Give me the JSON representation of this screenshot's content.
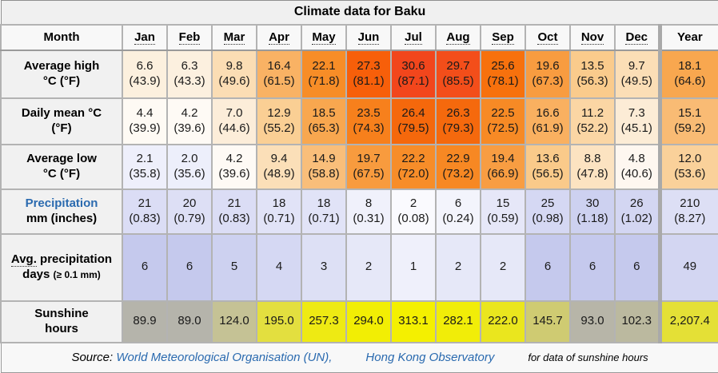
{
  "title": "Climate data for Baku",
  "header": {
    "month": "Month",
    "year": "Year",
    "months": [
      "Jan",
      "Feb",
      "Mar",
      "Apr",
      "May",
      "Jun",
      "Jul",
      "Aug",
      "Sep",
      "Oct",
      "Nov",
      "Dec"
    ]
  },
  "colors": {
    "link": "#2a6aaf",
    "title_bg": "#f0f0f0",
    "header_bg": "#f8f8f8",
    "label_bg": "#f1f1f1",
    "grid": "#b3b3b3"
  },
  "rows": [
    {
      "id": "average-high",
      "label": {
        "line1": "Average high",
        "line2": "°C (°F)"
      },
      "values": [
        "6.6",
        "6.3",
        "9.8",
        "16.4",
        "22.1",
        "27.3",
        "30.6",
        "29.7",
        "25.6",
        "19.6",
        "13.5",
        "9.7"
      ],
      "subs": [
        "(43.9)",
        "(43.3)",
        "(49.6)",
        "(61.5)",
        "(71.8)",
        "(81.1)",
        "(87.1)",
        "(85.5)",
        "(78.1)",
        "(67.3)",
        "(56.3)",
        "(49.5)"
      ],
      "year": {
        "value": "18.1",
        "sub": "(64.6)"
      },
      "colors": [
        "#FCF0DE",
        "#FCF0DF",
        "#FBDDB4",
        "#F9B264",
        "#F78D27",
        "#F75F0A",
        "#F2461C",
        "#F34E1A",
        "#F7710D",
        "#F89C40",
        "#FACB8C",
        "#FBDEB6"
      ],
      "year_color": "#F8A74F"
    },
    {
      "id": "daily-mean",
      "label": {
        "line1": "Daily mean °C",
        "line2": "(°F)"
      },
      "values": [
        "4.4",
        "4.2",
        "7.0",
        "12.9",
        "18.5",
        "23.5",
        "26.4",
        "26.3",
        "22.5",
        "16.6",
        "11.2",
        "7.3"
      ],
      "subs": [
        "(39.9)",
        "(39.6)",
        "(44.6)",
        "(55.2)",
        "(65.3)",
        "(74.3)",
        "(79.5)",
        "(79.3)",
        "(72.5)",
        "(61.9)",
        "(52.2)",
        "(45.1)"
      ],
      "year": {
        "value": "15.1",
        "sub": "(59.2)"
      },
      "colors": [
        "#FEFAF4",
        "#FEFAF5",
        "#FCEDD9",
        "#FACF94",
        "#F8A74F",
        "#F7801C",
        "#F5680C",
        "#F5690D",
        "#F78A25",
        "#F9B060",
        "#FBD6A4",
        "#FCECD6"
      ],
      "year_color": "#F9BB74"
    },
    {
      "id": "average-low",
      "label": {
        "line1": "Average low",
        "line2": "°C (°F)"
      },
      "values": [
        "2.1",
        "2.0",
        "4.2",
        "9.4",
        "14.9",
        "19.7",
        "22.2",
        "22.9",
        "19.4",
        "13.6",
        "8.8",
        "4.8"
      ],
      "subs": [
        "(35.8)",
        "(35.6)",
        "(39.6)",
        "(48.9)",
        "(58.8)",
        "(67.5)",
        "(72.0)",
        "(73.2)",
        "(66.9)",
        "(56.5)",
        "(47.8)",
        "(40.6)"
      ],
      "year": {
        "value": "12.0",
        "sub": "(53.6)"
      },
      "colors": [
        "#EEEFFB",
        "#EDEFFB",
        "#FEFAF5",
        "#FBDFB8",
        "#F9BE7A",
        "#F89B3E",
        "#F78D29",
        "#F78823",
        "#F89D42",
        "#FACA8A",
        "#FCE3C1",
        "#FEF7F0"
      ],
      "year_color": "#FAD19A"
    },
    {
      "id": "precipitation",
      "label": {
        "line1": "Precipitation",
        "link": true,
        "line2": "mm (inches)"
      },
      "values": [
        "21",
        "20",
        "21",
        "18",
        "18",
        "8",
        "2",
        "6",
        "15",
        "25",
        "30",
        "26"
      ],
      "subs": [
        "(0.83)",
        "(0.79)",
        "(0.83)",
        "(0.71)",
        "(0.71)",
        "(0.31)",
        "(0.08)",
        "(0.24)",
        "(0.59)",
        "(0.98)",
        "(1.18)",
        "(1.02)"
      ],
      "year": {
        "value": "210",
        "sub": "(8.27)"
      },
      "colors": [
        "#DBDDF5",
        "#DDDFF5",
        "#DBDDF5",
        "#E1E3F7",
        "#E1E3F7",
        "#F0F1FB",
        "#FAFAFE",
        "#F3F4FC",
        "#E6E7F8",
        "#D5D8F3",
        "#CDD1F0",
        "#D3D6F2"
      ],
      "year_color": "#DDDFF5"
    },
    {
      "id": "precip-days",
      "label": {
        "abbr": "Avg.",
        "rest": "precipitation days",
        "small": "(≥ 0.1 mm)"
      },
      "values": [
        "6",
        "6",
        "5",
        "4",
        "3",
        "2",
        "1",
        "2",
        "2",
        "6",
        "6",
        "6"
      ],
      "subs": null,
      "year": {
        "value": "49",
        "sub": null
      },
      "colors": [
        "#C5C9ED",
        "#C5C9ED",
        "#CDD1F0",
        "#D5D8F3",
        "#DDE0F5",
        "#E6E8F8",
        "#EFF0FB",
        "#E6E8F8",
        "#E6E8F8",
        "#C5C9ED",
        "#C5C9ED",
        "#C5C9ED"
      ],
      "year_color": "#D3D6F2"
    },
    {
      "id": "sunshine",
      "label": {
        "line1": "Sunshine",
        "line2": "hours"
      },
      "values": [
        "89.9",
        "89.0",
        "124.0",
        "195.0",
        "257.3",
        "294.0",
        "313.1",
        "282.1",
        "222.0",
        "145.7",
        "93.0",
        "102.3"
      ],
      "subs": null,
      "year": {
        "value": "2,207.4",
        "sub": null
      },
      "colors": [
        "#B5B4AB",
        "#B5B4AB",
        "#C5C295",
        "#E3DF3F",
        "#EEEA13",
        "#F2EE04",
        "#F4F000",
        "#F1ED08",
        "#EAE61E",
        "#CFCB72",
        "#B7B5A8",
        "#BBB99F"
      ],
      "year_color": "#E4E036"
    }
  ],
  "footer": {
    "prefix": "Source:",
    "link1": "World Meteorological Organisation (UN),",
    "link2": "Hong Kong Observatory",
    "note": "for data of sunshine hours"
  },
  "chart_data": {
    "type": "table",
    "title": "Climate data for Baku",
    "categories": [
      "Jan",
      "Feb",
      "Mar",
      "Apr",
      "May",
      "Jun",
      "Jul",
      "Aug",
      "Sep",
      "Oct",
      "Nov",
      "Dec"
    ],
    "series": [
      {
        "name": "Average high °C",
        "values": [
          6.6,
          6.3,
          9.8,
          16.4,
          22.1,
          27.3,
          30.6,
          29.7,
          25.6,
          19.6,
          13.5,
          9.7
        ],
        "year": 18.1
      },
      {
        "name": "Average high °F",
        "values": [
          43.9,
          43.3,
          49.6,
          61.5,
          71.8,
          81.1,
          87.1,
          85.5,
          78.1,
          67.3,
          56.3,
          49.5
        ],
        "year": 64.6
      },
      {
        "name": "Daily mean °C",
        "values": [
          4.4,
          4.2,
          7.0,
          12.9,
          18.5,
          23.5,
          26.4,
          26.3,
          22.5,
          16.6,
          11.2,
          7.3
        ],
        "year": 15.1
      },
      {
        "name": "Daily mean °F",
        "values": [
          39.9,
          39.6,
          44.6,
          55.2,
          65.3,
          74.3,
          79.5,
          79.3,
          72.5,
          61.9,
          52.2,
          45.1
        ],
        "year": 59.2
      },
      {
        "name": "Average low °C",
        "values": [
          2.1,
          2.0,
          4.2,
          9.4,
          14.9,
          19.7,
          22.2,
          22.9,
          19.4,
          13.6,
          8.8,
          4.8
        ],
        "year": 12.0
      },
      {
        "name": "Average low °F",
        "values": [
          35.8,
          35.6,
          39.6,
          48.9,
          58.8,
          67.5,
          72.0,
          73.2,
          66.9,
          56.5,
          47.8,
          40.6
        ],
        "year": 53.6
      },
      {
        "name": "Precipitation mm",
        "values": [
          21,
          20,
          21,
          18,
          18,
          8,
          2,
          6,
          15,
          25,
          30,
          26
        ],
        "year": 210
      },
      {
        "name": "Precipitation inches",
        "values": [
          0.83,
          0.79,
          0.83,
          0.71,
          0.71,
          0.31,
          0.08,
          0.24,
          0.59,
          0.98,
          1.18,
          1.02
        ],
        "year": 8.27
      },
      {
        "name": "Avg. precipitation days (≥ 0.1 mm)",
        "values": [
          6,
          6,
          5,
          4,
          3,
          2,
          1,
          2,
          2,
          6,
          6,
          6
        ],
        "year": 49
      },
      {
        "name": "Sunshine hours",
        "values": [
          89.9,
          89.0,
          124.0,
          195.0,
          257.3,
          294.0,
          313.1,
          282.1,
          222.0,
          145.7,
          93.0,
          102.3
        ],
        "year": 2207.4
      }
    ]
  }
}
